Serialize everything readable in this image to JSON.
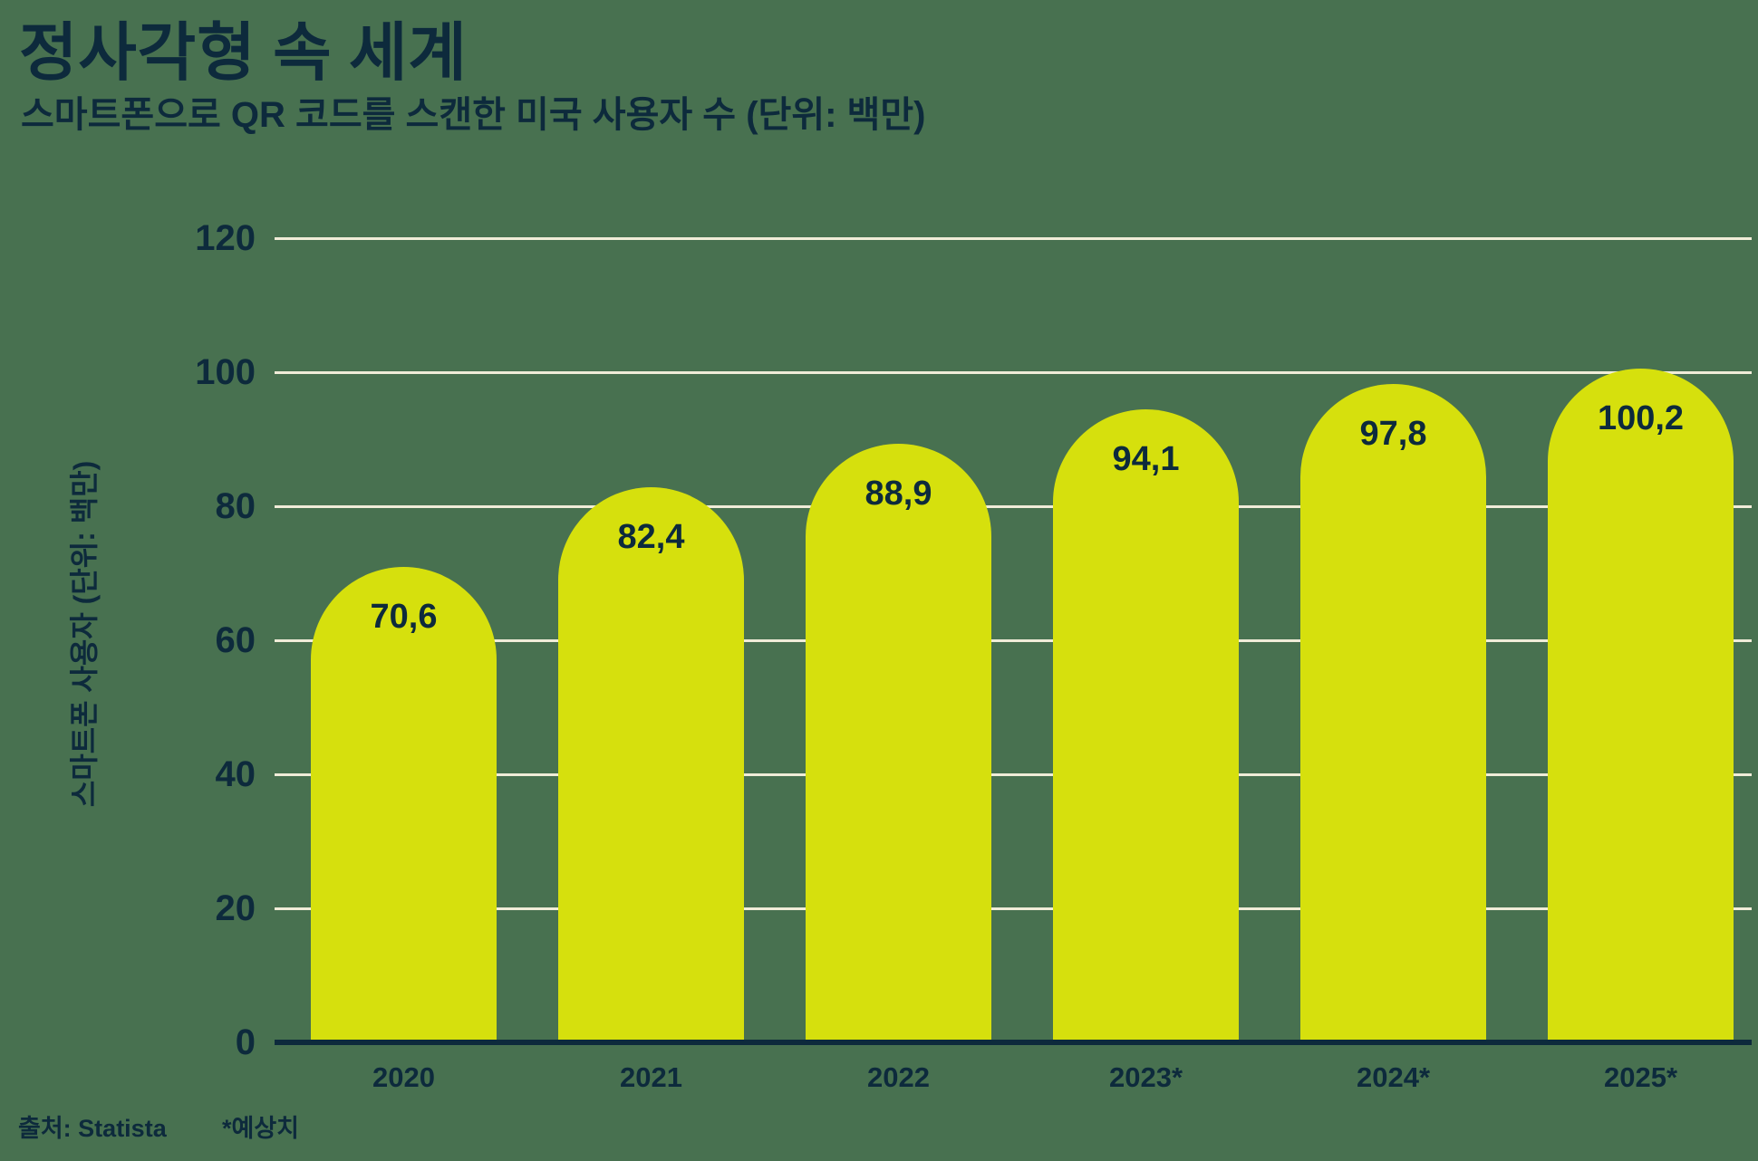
{
  "page": {
    "background_color": "#487150",
    "text_color": "#0D2A3C"
  },
  "header": {
    "title": "정사각형 속 세계",
    "subtitle": "스마트폰으로 QR 코드를 스캔한 미국 사용자 수 (단위: 백만)"
  },
  "chart_data": {
    "type": "bar",
    "title": "정사각형 속 세계",
    "subtitle": "스마트폰으로 QR 코드를 스캔한 미국 사용자 수 (단위: 백만)",
    "categories": [
      "2020",
      "2021",
      "2022",
      "2023*",
      "2024*",
      "2025*"
    ],
    "values": [
      70.6,
      82.4,
      88.9,
      94.1,
      97.8,
      100.2
    ],
    "value_labels": [
      "70,6",
      "82,4",
      "88,9",
      "94,1",
      "97,8",
      "100,2"
    ],
    "xlabel": "",
    "ylabel": "스마트폰 사용자 (단위: 백만)",
    "ylim": [
      0,
      120
    ],
    "yticks": [
      0,
      20,
      40,
      60,
      80,
      100,
      120
    ],
    "ytick_labels": [
      "0",
      "20",
      "40",
      "60",
      "80",
      "100",
      "120"
    ],
    "grid": true,
    "legend": "none",
    "bar_color": "#D6E00D",
    "gridline_color": "#F0ECD8",
    "axis_color": "#0D2A3C"
  },
  "footer": {
    "source": "출처: Statista",
    "note": "*예상치"
  }
}
